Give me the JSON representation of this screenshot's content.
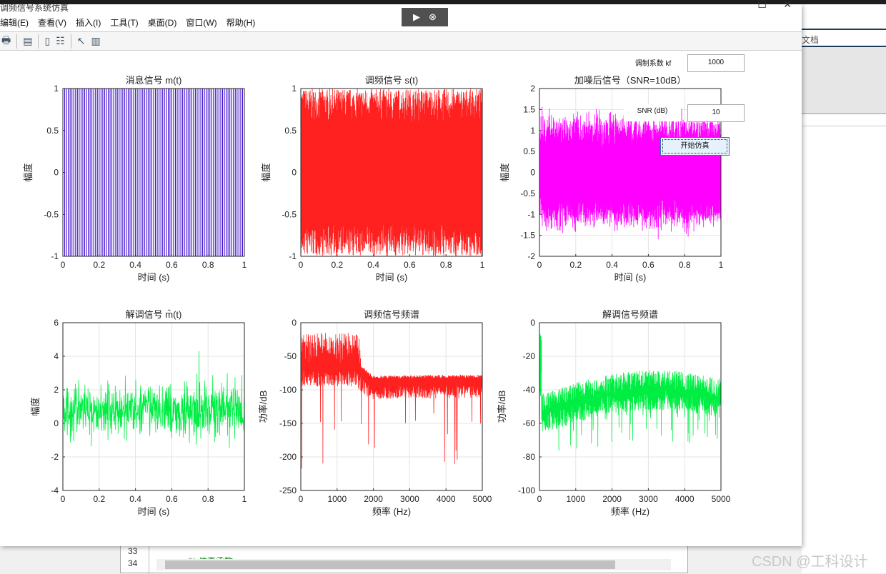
{
  "window": {
    "title": "调频信号系统仿真",
    "menu": [
      "编辑(E)",
      "查看(V)",
      "插入(I)",
      "工具(T)",
      "桌面(D)",
      "窗口(W)",
      "帮助(H)"
    ]
  },
  "toolbar_icons": [
    "print-icon",
    "print-preview-icon",
    "colorbar-icon",
    "legend-icon",
    "pointer-icon",
    "property-inspector-icon"
  ],
  "controls": {
    "kf_label": "调制系数 kf",
    "kf_value": "1000",
    "snr_label": "SNR (dB)",
    "snr_value": "10",
    "run_label": "开始仿真"
  },
  "side_panel": {
    "doc_label": "文档"
  },
  "editor": {
    "lines": [
      "33",
      "34"
    ],
    "code": "% 仿真函数"
  },
  "watermark": "CSDN @工科设计",
  "chart_data": [
    {
      "type": "line",
      "title": "消息信号 m(t)",
      "xlabel": "时间 (s)",
      "ylabel": "幅度",
      "xlim": [
        0,
        1
      ],
      "ylim": [
        -1,
        1
      ],
      "xticks": [
        "0",
        "0.2",
        "0.4",
        "0.6",
        "0.8",
        "1"
      ],
      "yticks": [
        "-1",
        "-0.5",
        "0",
        "0.5",
        "1"
      ],
      "color": "#3300cc",
      "signal": "square wave ±1, ~50 cycles",
      "grid": false
    },
    {
      "type": "line",
      "title": "调频信号 s(t)",
      "xlabel": "时间 (s)",
      "ylabel": "幅度",
      "xlim": [
        0,
        1
      ],
      "ylim": [
        -1,
        1
      ],
      "xticks": [
        "0",
        "0.2",
        "0.4",
        "0.6",
        "0.8",
        "1"
      ],
      "yticks": [
        "-1",
        "-0.5",
        "0",
        "0.5",
        "1"
      ],
      "color": "#ff2020",
      "signal": "dense FM oscillation ±1",
      "grid": false
    },
    {
      "type": "line",
      "title": "加噪后信号（SNR=10dB）",
      "xlabel": "时间 (s)",
      "ylabel": "幅度",
      "xlim": [
        0,
        1
      ],
      "ylim": [
        -2,
        2
      ],
      "xticks": [
        "0",
        "0.2",
        "0.4",
        "0.6",
        "0.8",
        "1"
      ],
      "yticks": [
        "-2",
        "-1.5",
        "-1",
        "-0.5",
        "0",
        "0.5",
        "1",
        "1.5",
        "2"
      ],
      "color": "#ff00ff",
      "signal": "noise band approx -1.5 to 1.5",
      "grid": true
    },
    {
      "type": "line",
      "title": "解调信号 m̂(t)",
      "xlabel": "时间 (s)",
      "ylabel": "幅度",
      "xlim": [
        0,
        1
      ],
      "ylim": [
        -4,
        6
      ],
      "xticks": [
        "0",
        "0.2",
        "0.4",
        "0.6",
        "0.8",
        "1"
      ],
      "yticks": [
        "-4",
        "-2",
        "0",
        "2",
        "4",
        "6"
      ],
      "color": "#00ee44",
      "signal": "noisy around 0.8, range approx -3 to 4.3",
      "grid": true
    },
    {
      "type": "line",
      "title": "调频信号频谱",
      "xlabel": "频率 (Hz)",
      "ylabel": "功率/dB",
      "xlim": [
        0,
        5000
      ],
      "ylim": [
        -250,
        0
      ],
      "xticks": [
        "0",
        "1000",
        "2000",
        "3000",
        "4000",
        "5000"
      ],
      "yticks": [
        "-250",
        "-200",
        "-150",
        "-100",
        "-50",
        "0"
      ],
      "color": "#ff2020",
      "signal": "peaks to -20 below 1600 Hz, floor approx -95 above 2000 Hz",
      "grid": true
    },
    {
      "type": "line",
      "title": "解调信号频谱",
      "xlabel": "频率 (Hz)",
      "ylabel": "功率/dB",
      "xlim": [
        0,
        5000
      ],
      "ylim": [
        -100,
        0
      ],
      "xticks": [
        "0",
        "1000",
        "2000",
        "3000",
        "4000",
        "5000"
      ],
      "yticks": [
        "-100",
        "-80",
        "-60",
        "-40",
        "-20",
        "0"
      ],
      "color": "#00ee44",
      "signal": "approx -55 rising to -40 near 3000 Hz",
      "grid": true
    }
  ]
}
